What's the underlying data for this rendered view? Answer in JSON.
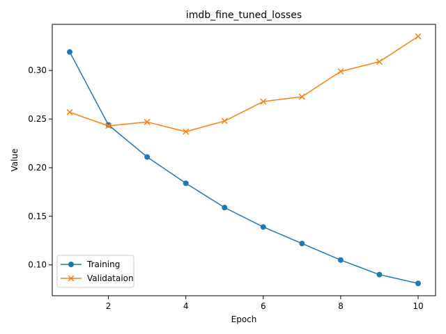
{
  "chart_data": {
    "type": "line",
    "title": "imdb_fine_tuned_losses",
    "xlabel": "Epoch",
    "ylabel": "Value",
    "x": [
      1,
      2,
      3,
      4,
      5,
      6,
      7,
      8,
      9,
      10
    ],
    "xlim": [
      0.55,
      10.45
    ],
    "ylim": [
      0.0683,
      0.3474
    ],
    "x_ticks": [
      2,
      4,
      6,
      8,
      10
    ],
    "x_tick_labels": [
      "2",
      "4",
      "6",
      "8",
      "10"
    ],
    "y_ticks": [
      0.1,
      0.15,
      0.2,
      0.25,
      0.3
    ],
    "y_tick_labels": [
      "0.10",
      "0.15",
      "0.20",
      "0.25",
      "0.30"
    ],
    "grid": false,
    "legend_position": "lower-left",
    "series": [
      {
        "name": "Training",
        "color": "#1f77b4",
        "marker": "circle",
        "values": [
          0.319,
          0.244,
          0.211,
          0.184,
          0.159,
          0.139,
          0.122,
          0.105,
          0.09,
          0.081
        ]
      },
      {
        "name": "Validataion",
        "color": "#ff7f0e",
        "marker": "x",
        "values": [
          0.257,
          0.243,
          0.247,
          0.237,
          0.248,
          0.268,
          0.273,
          0.299,
          0.309,
          0.335
        ]
      }
    ]
  }
}
